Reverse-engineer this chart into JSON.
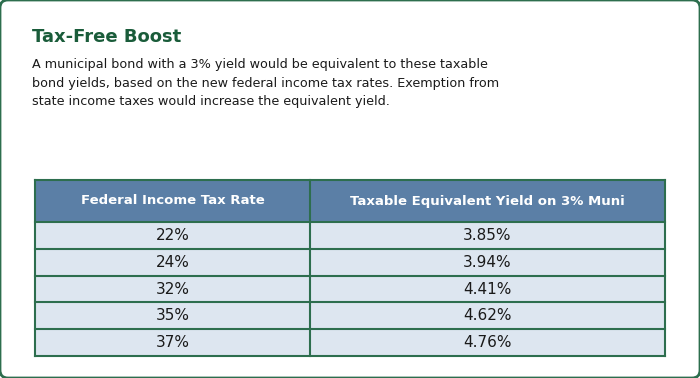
{
  "title": "Tax-Free Boost",
  "subtitle": "A municipal bond with a 3% yield would be equivalent to these taxable\nbond yields, based on the new federal income tax rates. Exemption from\nstate income taxes would increase the equivalent yield.",
  "col1_header": "Federal Income Tax Rate",
  "col2_header": "Taxable Equivalent Yield on 3% Muni",
  "rows": [
    [
      "22%",
      "3.85%"
    ],
    [
      "24%",
      "3.94%"
    ],
    [
      "32%",
      "4.41%"
    ],
    [
      "35%",
      "4.62%"
    ],
    [
      "37%",
      "4.76%"
    ]
  ],
  "header_bg": "#5b7fa6",
  "header_text": "#ffffff",
  "row_bg": "#dde6f0",
  "row_text": "#1a1a1a",
  "title_color": "#1a5c3a",
  "subtitle_color": "#1a1a1a",
  "outer_border_color": "#2d6e4e",
  "grid_line_color": "#2d6e4e",
  "background": "#ffffff",
  "fig_width": 7.0,
  "fig_height": 3.78,
  "dpi": 100
}
